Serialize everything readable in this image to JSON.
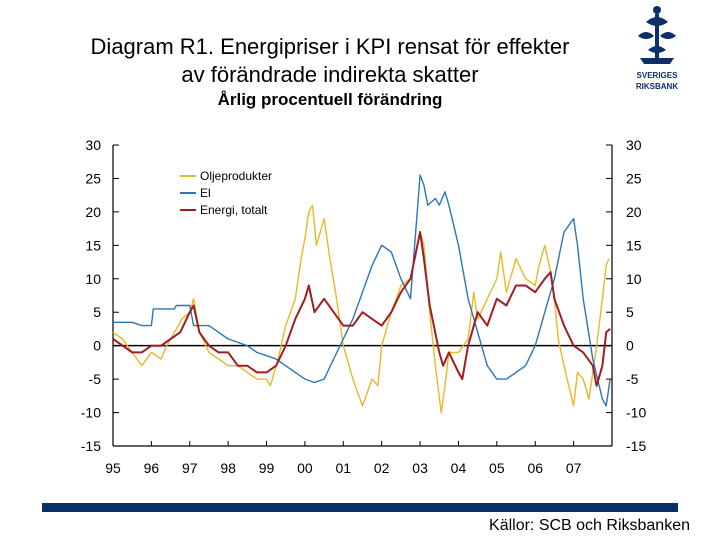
{
  "title_line1": "Diagram R1. Energipriser i KPI rensat för effekter",
  "title_line2": "av förändrade indirekta skatter",
  "subtitle": "Årlig procentuell förändring",
  "source": "Källor: SCB och Riksbanken",
  "logo": {
    "text": "SVERIGES RIKSBANK",
    "color": "#0b2f6b"
  },
  "colors": {
    "footer_bar": "#0b2f6b"
  },
  "chart_data": {
    "type": "line",
    "ylim": [
      -15,
      30
    ],
    "yticks": [
      30,
      25,
      20,
      15,
      10,
      5,
      0,
      -5,
      -10,
      -15
    ],
    "xlim": [
      1995,
      2008
    ],
    "xtick_labels": [
      "95",
      "96",
      "97",
      "98",
      "99",
      "00",
      "01",
      "02",
      "03",
      "04",
      "05",
      "06",
      "07"
    ],
    "grid": false,
    "zero_line": true,
    "legend_position": "top-left",
    "series": [
      {
        "name": "Oljeprodukter",
        "color": "#e8b82a",
        "points": [
          [
            1995.0,
            2
          ],
          [
            1995.25,
            1
          ],
          [
            1995.5,
            -1
          ],
          [
            1995.75,
            -3
          ],
          [
            1996.0,
            -1
          ],
          [
            1996.25,
            -2
          ],
          [
            1996.4,
            0
          ],
          [
            1996.6,
            2
          ],
          [
            1996.8,
            4
          ],
          [
            1997.0,
            5
          ],
          [
            1997.1,
            7
          ],
          [
            1997.25,
            2
          ],
          [
            1997.5,
            -1
          ],
          [
            1997.75,
            -2
          ],
          [
            1998.0,
            -3
          ],
          [
            1998.25,
            -3
          ],
          [
            1998.5,
            -4
          ],
          [
            1998.75,
            -5
          ],
          [
            1999.0,
            -5
          ],
          [
            1999.1,
            -6
          ],
          [
            1999.3,
            -2
          ],
          [
            1999.5,
            3
          ],
          [
            1999.75,
            7
          ],
          [
            1999.9,
            13
          ],
          [
            2000.0,
            16
          ],
          [
            2000.1,
            20
          ],
          [
            2000.2,
            21
          ],
          [
            2000.3,
            15
          ],
          [
            2000.4,
            17
          ],
          [
            2000.5,
            19
          ],
          [
            2000.65,
            13
          ],
          [
            2000.8,
            8
          ],
          [
            2001.0,
            0
          ],
          [
            2001.25,
            -5
          ],
          [
            2001.5,
            -9
          ],
          [
            2001.75,
            -5
          ],
          [
            2001.9,
            -6
          ],
          [
            2002.0,
            0
          ],
          [
            2002.25,
            5
          ],
          [
            2002.5,
            9
          ],
          [
            2002.75,
            10
          ],
          [
            2003.0,
            17
          ],
          [
            2003.1,
            15
          ],
          [
            2003.25,
            5
          ],
          [
            2003.4,
            -3
          ],
          [
            2003.55,
            -10
          ],
          [
            2003.65,
            -6
          ],
          [
            2003.75,
            -1
          ],
          [
            2004.0,
            -1
          ],
          [
            2004.25,
            1
          ],
          [
            2004.4,
            8
          ],
          [
            2004.5,
            4
          ],
          [
            2004.75,
            7
          ],
          [
            2005.0,
            10
          ],
          [
            2005.1,
            14
          ],
          [
            2005.25,
            8
          ],
          [
            2005.5,
            13
          ],
          [
            2005.75,
            10
          ],
          [
            2006.0,
            9
          ],
          [
            2006.1,
            12
          ],
          [
            2006.25,
            15
          ],
          [
            2006.4,
            11
          ],
          [
            2006.5,
            7
          ],
          [
            2006.6,
            1
          ],
          [
            2006.75,
            -3
          ],
          [
            2007.0,
            -9
          ],
          [
            2007.1,
            -4
          ],
          [
            2007.25,
            -5
          ],
          [
            2007.4,
            -8
          ],
          [
            2007.6,
            0
          ],
          [
            2007.75,
            7
          ],
          [
            2007.85,
            12
          ],
          [
            2007.92,
            13
          ]
        ]
      },
      {
        "name": "El",
        "color": "#2e75b6",
        "points": [
          [
            1995.0,
            3.5
          ],
          [
            1995.5,
            3.5
          ],
          [
            1995.75,
            3
          ],
          [
            1996.0,
            3
          ],
          [
            1996.05,
            5.5
          ],
          [
            1996.6,
            5.5
          ],
          [
            1996.65,
            6
          ],
          [
            1997.0,
            6
          ],
          [
            1997.1,
            3
          ],
          [
            1997.5,
            3
          ],
          [
            1997.75,
            2
          ],
          [
            1998.0,
            1
          ],
          [
            1998.5,
            0
          ],
          [
            1998.75,
            -1
          ],
          [
            1999.0,
            -1.5
          ],
          [
            1999.25,
            -2
          ],
          [
            1999.5,
            -3
          ],
          [
            1999.75,
            -4
          ],
          [
            2000.0,
            -5
          ],
          [
            2000.25,
            -5.5
          ],
          [
            2000.5,
            -5
          ],
          [
            2000.75,
            -2
          ],
          [
            2001.0,
            1
          ],
          [
            2001.25,
            4
          ],
          [
            2001.5,
            8
          ],
          [
            2001.75,
            12
          ],
          [
            2002.0,
            15
          ],
          [
            2002.25,
            14
          ],
          [
            2002.5,
            10
          ],
          [
            2002.75,
            7
          ],
          [
            2003.0,
            25.5
          ],
          [
            2003.1,
            24
          ],
          [
            2003.2,
            21
          ],
          [
            2003.4,
            22
          ],
          [
            2003.5,
            21
          ],
          [
            2003.65,
            23
          ],
          [
            2003.75,
            21
          ],
          [
            2004.0,
            15
          ],
          [
            2004.25,
            7
          ],
          [
            2004.5,
            2
          ],
          [
            2004.75,
            -3
          ],
          [
            2005.0,
            -5
          ],
          [
            2005.25,
            -5
          ],
          [
            2005.5,
            -4
          ],
          [
            2005.75,
            -3
          ],
          [
            2006.0,
            0
          ],
          [
            2006.25,
            5
          ],
          [
            2006.5,
            10
          ],
          [
            2006.75,
            17
          ],
          [
            2007.0,
            19
          ],
          [
            2007.1,
            15
          ],
          [
            2007.25,
            7
          ],
          [
            2007.5,
            -2
          ],
          [
            2007.75,
            -8
          ],
          [
            2007.85,
            -9
          ],
          [
            2007.95,
            -5
          ]
        ]
      },
      {
        "name": "Energi, totalt",
        "color": "#a01d22",
        "points": [
          [
            1995.0,
            1
          ],
          [
            1995.25,
            0
          ],
          [
            1995.5,
            -1
          ],
          [
            1995.75,
            -1
          ],
          [
            1996.0,
            0
          ],
          [
            1996.25,
            0
          ],
          [
            1996.5,
            1
          ],
          [
            1996.75,
            2
          ],
          [
            1997.0,
            5
          ],
          [
            1997.1,
            6
          ],
          [
            1997.25,
            2
          ],
          [
            1997.5,
            0
          ],
          [
            1997.75,
            -1
          ],
          [
            1998.0,
            -1
          ],
          [
            1998.25,
            -3
          ],
          [
            1998.5,
            -3
          ],
          [
            1998.75,
            -4
          ],
          [
            1999.0,
            -4
          ],
          [
            1999.25,
            -3
          ],
          [
            1999.5,
            0
          ],
          [
            1999.75,
            4
          ],
          [
            2000.0,
            7
          ],
          [
            2000.1,
            9
          ],
          [
            2000.25,
            5
          ],
          [
            2000.5,
            7
          ],
          [
            2000.75,
            5
          ],
          [
            2001.0,
            3
          ],
          [
            2001.25,
            3
          ],
          [
            2001.5,
            5
          ],
          [
            2001.75,
            4
          ],
          [
            2002.0,
            3
          ],
          [
            2002.25,
            5
          ],
          [
            2002.5,
            8
          ],
          [
            2002.75,
            10
          ],
          [
            2003.0,
            17
          ],
          [
            2003.1,
            13
          ],
          [
            2003.25,
            6
          ],
          [
            2003.5,
            -1
          ],
          [
            2003.6,
            -3
          ],
          [
            2003.75,
            -1
          ],
          [
            2004.0,
            -4
          ],
          [
            2004.1,
            -5
          ],
          [
            2004.25,
            0
          ],
          [
            2004.5,
            5
          ],
          [
            2004.75,
            3
          ],
          [
            2005.0,
            7
          ],
          [
            2005.25,
            6
          ],
          [
            2005.5,
            9
          ],
          [
            2005.75,
            9
          ],
          [
            2006.0,
            8
          ],
          [
            2006.25,
            10
          ],
          [
            2006.4,
            11
          ],
          [
            2006.5,
            7
          ],
          [
            2006.75,
            3
          ],
          [
            2007.0,
            0
          ],
          [
            2007.25,
            -1
          ],
          [
            2007.5,
            -3
          ],
          [
            2007.6,
            -6
          ],
          [
            2007.75,
            -3
          ],
          [
            2007.85,
            2
          ],
          [
            2007.95,
            2.5
          ]
        ]
      }
    ]
  }
}
